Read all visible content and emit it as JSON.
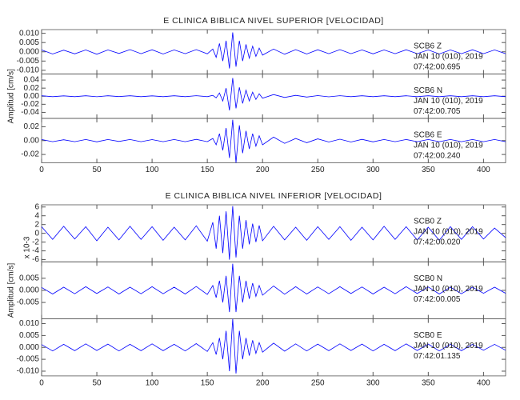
{
  "chart_data": [
    {
      "type": "line",
      "title": "E CLINICA BIBLICA NIVEL SUPERIOR [VELOCIDAD]",
      "ylabel": "Amplitud [cm/s]",
      "x": [
        0,
        10,
        20,
        30,
        40,
        50,
        60,
        70,
        80,
        90,
        100,
        110,
        120,
        130,
        140,
        150,
        155,
        158,
        161,
        164,
        167,
        170,
        173,
        176,
        179,
        182,
        185,
        188,
        191,
        194,
        197,
        200,
        210,
        220,
        230,
        240,
        250,
        260,
        270,
        280,
        290,
        300,
        310,
        320,
        330,
        340,
        350,
        360,
        370,
        380,
        390,
        400,
        410,
        420
      ],
      "xlim": [
        0,
        420
      ],
      "xticks": [
        0,
        50,
        100,
        150,
        200,
        250,
        300,
        350,
        400
      ],
      "panels": [
        {
          "annotation": [
            "SCB6    Z",
            "JAN 10 (010), 2019",
            "07:42:00.695"
          ],
          "ylim": [
            -0.012,
            0.012
          ],
          "yticks": [
            {
              "value": 0.01,
              "label": "0.010"
            },
            0.005,
            {
              "value": 0,
              "label": "0.000"
            },
            -0.005,
            {
              "value": -0.01,
              "label": "-0.010"
            }
          ],
          "series": [
            {
              "color": "#0000ff",
              "values": [
                0.001,
                -0.0012,
                0.0009,
                -0.0011,
                0.001,
                -0.0013,
                0.001,
                -0.0009,
                0.0012,
                -0.001,
                0.0011,
                -0.0012,
                0.001,
                -0.001,
                0.0012,
                -0.0011,
                0.0015,
                -0.003,
                0.0045,
                -0.005,
                0.006,
                -0.009,
                0.0105,
                -0.008,
                0.006,
                -0.005,
                0.004,
                -0.0035,
                0.003,
                -0.0025,
                0.002,
                -0.0018,
                0.0015,
                -0.0013,
                0.0012,
                -0.0012,
                0.0011,
                -0.001,
                0.0012,
                -0.001,
                0.001,
                -0.0011,
                0.001,
                -0.001,
                0.0011,
                -0.001,
                0.001,
                -0.0012,
                0.001,
                -0.001,
                0.0011,
                -0.001,
                0.001,
                -0.001
              ]
            }
          ]
        },
        {
          "annotation": [
            "SCB6    N",
            "JAN 10 (010), 2019",
            "07:42:00.705"
          ],
          "ylim": [
            -0.055,
            0.055
          ],
          "yticks": [
            0.04,
            0.02,
            {
              "value": 0,
              "label": "0.00"
            },
            -0.02,
            -0.04
          ],
          "series": [
            {
              "color": "#0000ff",
              "values": [
                0.001,
                -0.001,
                0.0008,
                -0.001,
                0.001,
                -0.0012,
                0.001,
                -0.0008,
                0.001,
                -0.001,
                0.0009,
                -0.001,
                0.001,
                -0.001,
                0.0012,
                -0.001,
                0.002,
                -0.004,
                0.008,
                -0.012,
                0.02,
                -0.035,
                0.045,
                -0.03,
                0.022,
                -0.018,
                0.015,
                -0.012,
                0.01,
                -0.008,
                0.006,
                -0.005,
                0.004,
                -0.003,
                0.002,
                -0.002,
                0.0015,
                -0.0015,
                0.0012,
                -0.001,
                0.001,
                -0.001,
                0.001,
                -0.001,
                0.001,
                -0.001,
                0.001,
                -0.001,
                0.001,
                -0.001,
                0.001,
                -0.001,
                0.001,
                -0.001
              ]
            }
          ]
        },
        {
          "annotation": [
            "SCB6    E",
            "JAN 10 (010), 2019",
            "07:42:00.240"
          ],
          "ylim": [
            -0.032,
            0.032
          ],
          "yticks": [
            0.02,
            {
              "value": 0,
              "label": "0.00"
            },
            -0.02
          ],
          "series": [
            {
              "color": "#0000ff",
              "values": [
                0.0015,
                -0.0015,
                0.0012,
                -0.0015,
                0.0015,
                -0.0018,
                0.0015,
                -0.0012,
                0.0015,
                -0.0015,
                0.0014,
                -0.0015,
                0.0015,
                -0.0015,
                0.0018,
                -0.0015,
                0.003,
                -0.006,
                0.01,
                -0.014,
                0.018,
                -0.025,
                0.03,
                -0.032,
                0.022,
                -0.018,
                0.014,
                -0.012,
                0.01,
                -0.008,
                0.007,
                -0.006,
                0.005,
                -0.004,
                0.003,
                -0.003,
                0.0025,
                -0.002,
                0.002,
                -0.002,
                0.0018,
                -0.0018,
                0.0015,
                -0.0015,
                0.0015,
                -0.0015,
                0.0015,
                -0.0015,
                0.0015,
                -0.0015,
                0.0015,
                -0.0015,
                0.0015,
                -0.0015
              ]
            }
          ]
        }
      ]
    },
    {
      "type": "line",
      "title": "E CLINICA BIBLICA NIVEL INFERIOR [VELOCIDAD]",
      "ylabel": "Amplitud [cm/s]",
      "x": [
        0,
        10,
        20,
        30,
        40,
        50,
        60,
        70,
        80,
        90,
        100,
        110,
        120,
        130,
        140,
        150,
        155,
        158,
        161,
        164,
        167,
        170,
        173,
        176,
        179,
        182,
        185,
        188,
        191,
        194,
        197,
        200,
        210,
        220,
        230,
        240,
        250,
        260,
        270,
        280,
        290,
        300,
        310,
        320,
        330,
        340,
        350,
        360,
        370,
        380,
        390,
        400,
        410,
        420
      ],
      "xlim": [
        0,
        420
      ],
      "xticks": [
        0,
        50,
        100,
        150,
        200,
        250,
        300,
        350,
        400
      ],
      "panels": [
        {
          "annotation": [
            "SCB0    Z",
            "JAN 10 (010), 2019",
            "07:42:00.020"
          ],
          "scale_label": "x 10-3",
          "ylim": [
            -6.5,
            6.5
          ],
          "yticks": [
            6,
            4,
            2,
            0,
            -2,
            -4,
            -6
          ],
          "series": [
            {
              "color": "#0000ff",
              "values": [
                1.5,
                -1.4,
                1.6,
                -1.3,
                1.5,
                -1.7,
                1.4,
                -1.5,
                1.6,
                -1.4,
                1.5,
                -1.6,
                1.4,
                -1.5,
                1.7,
                -1.8,
                2.5,
                -3.5,
                4,
                -4.5,
                5,
                -6,
                6.2,
                -5.5,
                4,
                -3.5,
                3,
                -2.5,
                2.2,
                -2,
                1.8,
                -1.7,
                1.6,
                -1.5,
                1.4,
                -1.6,
                1.5,
                -1.4,
                1.5,
                -1.6,
                1.4,
                -1.5,
                1.6,
                -1.4,
                1.5,
                -1.5,
                1.4,
                -1.6,
                1.5,
                -1.4,
                1.5,
                -1.3,
                1.2,
                -1.0
              ]
            }
          ]
        },
        {
          "annotation": [
            "SCB0    N",
            "JAN 10 (010), 2019",
            "07:42:00.005"
          ],
          "ylim": [
            -0.0118,
            0.0118
          ],
          "yticks": [
            0.005,
            {
              "value": 0,
              "label": "0.000"
            },
            -0.005
          ],
          "series": [
            {
              "color": "#0000ff",
              "values": [
                0.0012,
                -0.0015,
                0.0013,
                -0.0014,
                0.0015,
                -0.0013,
                0.0014,
                -0.0015,
                0.0013,
                -0.0014,
                0.0015,
                -0.0014,
                0.0013,
                -0.0015,
                0.0016,
                -0.0017,
                0.002,
                -0.003,
                0.004,
                -0.005,
                0.006,
                -0.009,
                0.011,
                -0.009,
                0.006,
                -0.005,
                0.004,
                -0.0035,
                0.003,
                -0.0025,
                0.002,
                -0.002,
                0.0018,
                -0.0016,
                0.0015,
                -0.0015,
                0.0014,
                -0.0014,
                0.0015,
                -0.0013,
                0.0014,
                -0.0015,
                0.0013,
                -0.0014,
                0.0015,
                -0.0013,
                0.0014,
                -0.0015,
                0.0013,
                -0.0014,
                0.0013,
                -0.0012,
                0.0013,
                -0.0012
              ]
            }
          ]
        },
        {
          "annotation": [
            "SCB0    E",
            "JAN 10 (010), 2019",
            "07:42:01.135"
          ],
          "ylim": [
            -0.012,
            0.012
          ],
          "yticks": [
            {
              "value": 0.01,
              "label": "0.010"
            },
            0.005,
            {
              "value": 0,
              "label": "0.000"
            },
            -0.005,
            {
              "value": -0.01,
              "label": "-0.010"
            }
          ],
          "series": [
            {
              "color": "#0000ff",
              "values": [
                0.0012,
                -0.0015,
                0.0013,
                -0.0014,
                0.0015,
                -0.0013,
                0.0014,
                -0.0015,
                0.0013,
                -0.0014,
                0.0015,
                -0.0014,
                0.0013,
                -0.0015,
                0.0016,
                -0.0017,
                0.002,
                -0.003,
                0.004,
                -0.005,
                0.007,
                -0.01,
                0.012,
                -0.011,
                0.007,
                -0.005,
                0.004,
                -0.0035,
                0.003,
                -0.0025,
                0.002,
                -0.002,
                0.0018,
                -0.0016,
                0.0015,
                -0.0015,
                0.0014,
                -0.0014,
                0.0015,
                -0.0013,
                0.0014,
                -0.0015,
                0.0013,
                -0.0014,
                0.0015,
                -0.0013,
                0.0014,
                -0.0015,
                0.0013,
                -0.0014,
                0.0013,
                -0.0012,
                0.0013,
                -0.0012
              ]
            }
          ]
        }
      ]
    }
  ]
}
